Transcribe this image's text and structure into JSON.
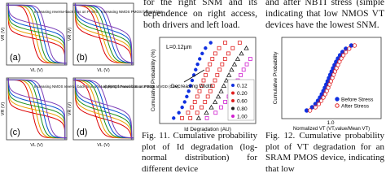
{
  "figure_10": {
    "panels": [
      {
        "label": "(a)",
        "annotation": "Increasing reverse-back bias on PMOS",
        "x_axis": "VL (V)",
        "y_axis": "VR (V)"
      },
      {
        "label": "(b)",
        "annotation": "Increasing NMOS PMOS forward bias",
        "x_axis": "VL (V)",
        "y_axis": "VR (V)"
      },
      {
        "label": "(c)",
        "annotation": "Increasing NMOS reverse back bias while applying forward bias on PMOS at VDD (0.5V)",
        "x_axis": "VL (V)",
        "y_axis": "VR (V)"
      },
      {
        "label": "(d)",
        "annotation": "Left NMOS Forward Source Bias",
        "x_axis": "VL (V)",
        "y_axis": "VR (V)"
      }
    ]
  },
  "column_2": {
    "text": "for the right SNM and its dependence on right access, both drivers and left load.",
    "figure": {
      "annotation": "L=0.12µm",
      "arrow_label": "Decreasing Width",
      "x_axis": "Id Degradation (AU)",
      "y_axis": "Cumulative Probability (%)",
      "legend": [
        "0.12",
        "0.20",
        "0.60",
        "0.80",
        "1.00"
      ]
    },
    "caption": "Fig. 11. Cumulative probability plot of Id degradation (log-normal distribution) for different device"
  },
  "column_3": {
    "text": "and after NBTI stress (simple indicating that low NMOS VT devices have the lowest SNM.",
    "figure": {
      "x_axis": "Normalized VT (VT,value/Mean VT)",
      "x_tick": "1.0",
      "y_axis": "Cumulative Probability",
      "legend": [
        "Before Stress",
        "After Stress"
      ]
    },
    "caption": "Fig. 12. Cumulative probability plot of VT degradation for an SRAM PMOS device, indicating that low"
  }
}
